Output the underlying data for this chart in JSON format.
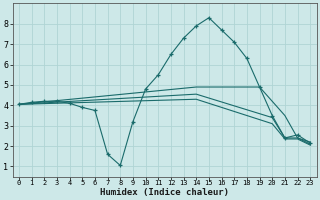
{
  "xlabel": "Humidex (Indice chaleur)",
  "ylabel": "",
  "xlim": [
    -0.5,
    23.5
  ],
  "ylim": [
    0.5,
    9.0
  ],
  "yticks": [
    1,
    2,
    3,
    4,
    5,
    6,
    7,
    8
  ],
  "xticks": [
    0,
    1,
    2,
    3,
    4,
    5,
    6,
    7,
    8,
    9,
    10,
    11,
    12,
    13,
    14,
    15,
    16,
    17,
    18,
    19,
    20,
    21,
    22,
    23
  ],
  "bg_color": "#cde8e8",
  "line_color": "#1a6b6b",
  "grid_color": "#b0d4d4",
  "lines": [
    {
      "x": [
        0,
        1,
        2,
        3,
        4,
        5,
        6,
        7,
        8,
        9,
        10,
        11,
        12,
        13,
        14,
        15,
        16,
        17,
        18,
        19,
        20,
        21,
        22,
        23
      ],
      "y": [
        4.05,
        4.15,
        4.2,
        4.2,
        4.1,
        3.9,
        3.75,
        1.6,
        1.05,
        3.2,
        4.8,
        5.5,
        6.5,
        7.3,
        7.9,
        8.3,
        7.7,
        7.1,
        6.3,
        4.9,
        3.5,
        2.4,
        2.55,
        2.15
      ],
      "marker": true
    },
    {
      "x": [
        0,
        14,
        19,
        21,
        22,
        23
      ],
      "y": [
        4.05,
        4.9,
        4.9,
        3.5,
        2.4,
        2.2
      ],
      "marker": false
    },
    {
      "x": [
        0,
        14,
        20,
        21,
        22,
        23
      ],
      "y": [
        4.05,
        4.55,
        3.4,
        2.4,
        2.4,
        2.1
      ],
      "marker": false
    },
    {
      "x": [
        0,
        14,
        20,
        21,
        22,
        23
      ],
      "y": [
        4.05,
        4.3,
        3.1,
        2.35,
        2.35,
        2.05
      ],
      "marker": false
    }
  ]
}
